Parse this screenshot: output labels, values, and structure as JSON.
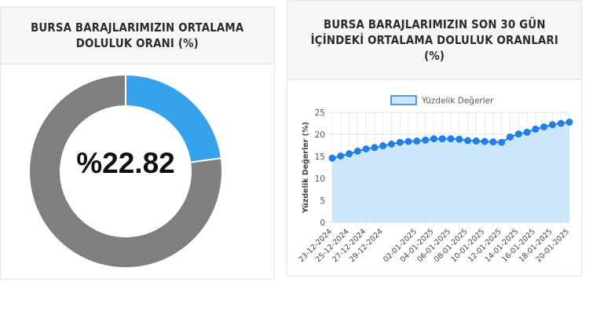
{
  "left_card": {
    "title_lines": [
      "BURSA BARAJLARIMIZIN ORTALAMA",
      "DOLULUK ORANI (%)"
    ],
    "center_label": "%22.82"
  },
  "right_card": {
    "title_lines": [
      "BURSA BARAJLARIMIZIN SON 30 GÜN",
      "İÇİNDEKİ ORTALAMA DOLULUK ORANLARI",
      "(%)"
    ]
  },
  "colors": {
    "donut_filled": "#36a2eb",
    "donut_remainder": "#7f7f7f",
    "line": "#1f7fe5",
    "area_fill": "#cce6fb",
    "legend_fill": "#cce6fb"
  },
  "chart_data": [
    {
      "type": "pie",
      "variant": "doughnut",
      "values": [
        22.82,
        77.18
      ],
      "center_label": "%22.82"
    },
    {
      "type": "area",
      "legend": [
        "Yüzdelik Değerler"
      ],
      "legend_position": "top",
      "ylabel": "Yüzdelik Değerler (%)",
      "xlabel": "",
      "ylim": [
        0,
        25
      ],
      "yticks": [
        0,
        5,
        10,
        15,
        20,
        25
      ],
      "grid": true,
      "x": [
        "23-12-2024",
        "24-12-2024",
        "25-12-2024",
        "26-12-2024",
        "27-12-2024",
        "28-12-2024",
        "29-12-2024",
        "30-12-2024",
        "31-12-2024",
        "01-01-2025",
        "02-01-2025",
        "03-01-2025",
        "04-01-2025",
        "05-01-2025",
        "06-01-2025",
        "07-01-2025",
        "08-01-2025",
        "09-01-2025",
        "10-01-2025",
        "11-01-2025",
        "12-01-2025",
        "13-01-2025",
        "14-01-2025",
        "15-01-2025",
        "16-01-2025",
        "17-01-2025",
        "18-01-2025",
        "19-01-2025",
        "20-01-2025"
      ],
      "tick_labels_shown": [
        "23-12-2024",
        "25-12-2024",
        "27-12-2024",
        "29-12-2024",
        "02-01-2025",
        "04-01-2025",
        "06-01-2025",
        "08-01-2025",
        "10-01-2025",
        "12-01-2025",
        "14-01-2025",
        "16-01-2025",
        "18-01-2025",
        "20-01-2025"
      ],
      "series": [
        {
          "name": "Yüzdelik Değerler",
          "values": [
            14.6,
            15.1,
            15.6,
            16.2,
            16.7,
            17.0,
            17.4,
            17.8,
            18.2,
            18.4,
            18.5,
            18.7,
            19.0,
            19.0,
            19.0,
            18.9,
            18.6,
            18.5,
            18.4,
            18.3,
            18.2,
            19.4,
            20.1,
            20.5,
            21.2,
            21.7,
            22.2,
            22.5,
            22.8
          ]
        }
      ]
    }
  ]
}
